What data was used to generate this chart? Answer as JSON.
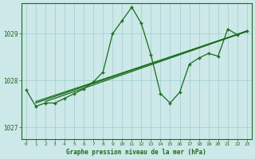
{
  "title": "Graphe pression niveau de la mer (hPa)",
  "background_color": "#cce8e8",
  "line_color": "#1a6b1a",
  "grid_color": "#9ecece",
  "xlim": [
    -0.5,
    23.5
  ],
  "ylim": [
    1026.75,
    1029.65
  ],
  "yticks": [
    1027,
    1028,
    1029
  ],
  "xticks": [
    0,
    1,
    2,
    3,
    4,
    5,
    6,
    7,
    8,
    9,
    10,
    11,
    12,
    13,
    14,
    15,
    16,
    17,
    18,
    19,
    20,
    21,
    22,
    23
  ],
  "main_series": [
    1027.8,
    1027.45,
    1027.52,
    1027.52,
    1027.62,
    1027.72,
    1027.82,
    1027.97,
    1028.18,
    1029.0,
    1029.28,
    1029.57,
    1029.22,
    1028.55,
    1027.72,
    1027.52,
    1027.75,
    1028.35,
    1028.48,
    1028.58,
    1028.52,
    1029.1,
    1028.98,
    1029.06
  ],
  "trend1_x": [
    1,
    23
  ],
  "trend1_y": [
    1027.52,
    1029.06
  ],
  "trend2_x": [
    1,
    23
  ],
  "trend2_y": [
    1027.52,
    1029.06
  ],
  "trend3_x": [
    2,
    23
  ],
  "trend3_y": [
    1027.52,
    1029.06
  ],
  "figwidth": 3.2,
  "figheight": 2.0,
  "dpi": 100
}
